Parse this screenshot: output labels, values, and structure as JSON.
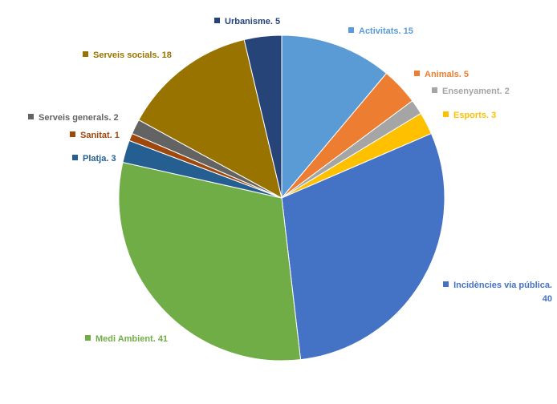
{
  "chart_data": {
    "type": "pie",
    "values": [
      15,
      5,
      2,
      3,
      40,
      41,
      3,
      1,
      2,
      18,
      5
    ],
    "value_labels": [
      "Activitats. 15",
      "Animals. 5",
      "Ensenyament. 2",
      "Esports. 3",
      "Incidències via pública. 40",
      "Medi Ambient. 41",
      "Platja. 3",
      "Sanitat. 1",
      "Serveis generals. 2",
      "Serveis socials. 18",
      "Urbanisme. 5"
    ],
    "colors": [
      "#5b9bd5",
      "#ed7d31",
      "#a5a5a5",
      "#ffc000",
      "#4472c4",
      "#70ad47",
      "#255e91",
      "#9e480e",
      "#636363",
      "#997300",
      "#264478"
    ]
  }
}
